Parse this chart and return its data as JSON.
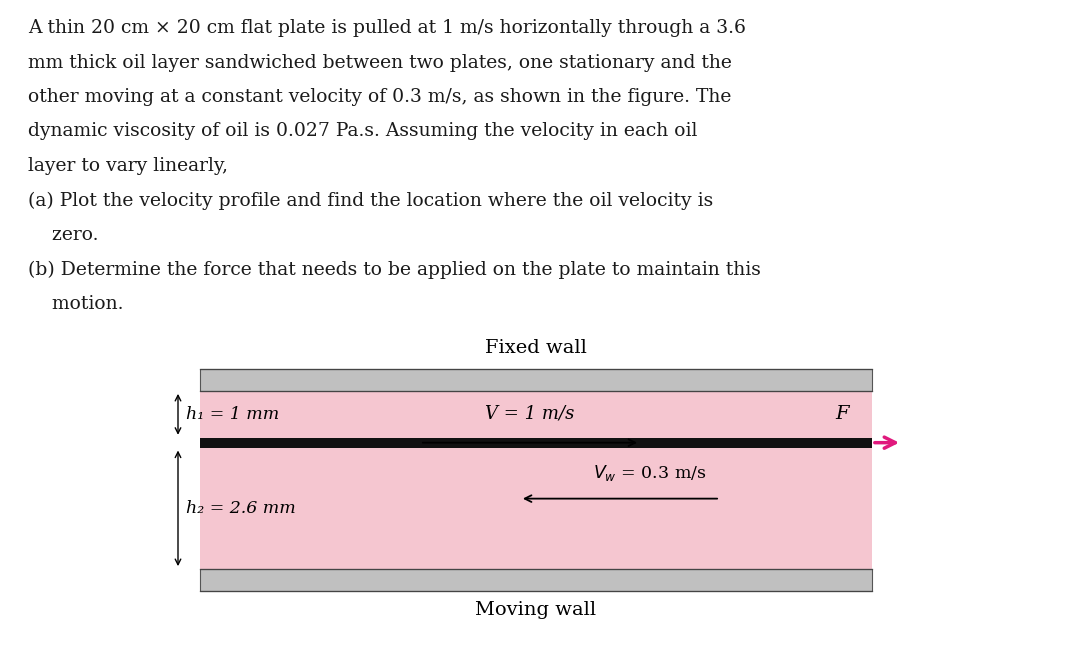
{
  "background_color": "#ffffff",
  "text_color": "#1a1a1a",
  "wall_color": "#c0c0c0",
  "oil_color": "#f5c6d0",
  "plate_color": "#111111",
  "arrow_color": "#e0197d",
  "fixed_wall_label": "Fixed wall",
  "moving_wall_label": "Moving wall",
  "h1_label": "h₁ = 1 mm",
  "h2_label": "h₂ = 2.6 mm",
  "V_label": "V = 1 m/s",
  "F_label": "F",
  "Vw_label": "V_w = 0.3 m/s",
  "line1": "A thin 20 cm × 20 cm flat plate is pulled at 1 m/s horizontally through a 3.6",
  "line2": "mm thick oil layer sandwiched between two plates, one stationary and the",
  "line3": "other moving at a constant velocity of 0.3 m/s, as shown in the figure. The",
  "line4": "dynamic viscosity of oil is 0.027 Pa.s. Assuming the velocity in each oil",
  "line5": "layer to vary linearly,",
  "line6": "(a) Plot the velocity profile and find the location where the oil velocity is",
  "line7": "    zero.",
  "line8": "(b) Determine the force that needs to be applied on the plate to maintain this",
  "line9": "    motion.",
  "font_size_text": 13.5,
  "font_size_label": 13.0,
  "font_size_dim": 12.5,
  "font_size_wall": 14.0
}
